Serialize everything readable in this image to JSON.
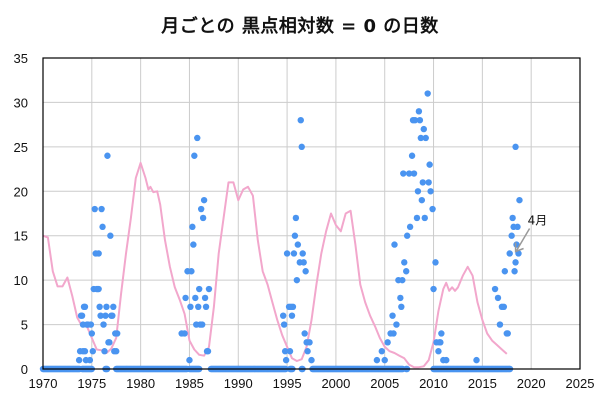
{
  "chart_data": {
    "type": "scatter",
    "title": "月ごとの 黒点相対数 = 0 の日数",
    "xlabel": "",
    "ylabel": "",
    "xlim": [
      1970,
      2025
    ],
    "ylim": [
      0,
      35
    ],
    "xticks": [
      1970,
      1975,
      1980,
      1985,
      1990,
      1995,
      2000,
      2005,
      2010,
      2015,
      2020,
      2025
    ],
    "yticks": [
      0,
      5,
      10,
      15,
      20,
      25,
      30,
      35
    ],
    "grid": true,
    "legend": "none",
    "colors": {
      "points": "#4a94f0",
      "smooth_line": "#f2a7cc",
      "grid": "#cccccc",
      "annotation_arrow": "#999999"
    },
    "annotation": {
      "text": "4月",
      "x": 2018.3,
      "y": 13
    },
    "series": [
      {
        "name": "spotless_days_per_month",
        "kind": "scatter",
        "zero_ranges": [
          [
            1970.0,
            1973.8
          ],
          [
            1974.0,
            1975.0
          ],
          [
            1976.4,
            1976.6
          ],
          [
            1977.5,
            1984.8
          ],
          [
            1985.0,
            1986.0
          ],
          [
            1987.2,
            1994.9
          ],
          [
            1995.3,
            1995.6
          ],
          [
            1996.5,
            1996.6
          ],
          [
            1997.6,
            2006.9
          ],
          [
            2007.2,
            2007.3
          ],
          [
            2010.0,
            2017.9
          ]
        ],
        "points": [
          [
            1973.7,
            1
          ],
          [
            1973.8,
            2
          ],
          [
            1973.9,
            6
          ],
          [
            1974.0,
            6
          ],
          [
            1974.1,
            2
          ],
          [
            1974.1,
            5
          ],
          [
            1974.2,
            7
          ],
          [
            1974.3,
            7
          ],
          [
            1974.3,
            2
          ],
          [
            1974.4,
            1
          ],
          [
            1974.5,
            5
          ],
          [
            1974.6,
            5
          ],
          [
            1974.8,
            1
          ],
          [
            1974.9,
            5
          ],
          [
            1975.0,
            4
          ],
          [
            1975.1,
            2
          ],
          [
            1975.2,
            9
          ],
          [
            1975.3,
            18
          ],
          [
            1975.4,
            13
          ],
          [
            1975.5,
            9
          ],
          [
            1975.6,
            9
          ],
          [
            1975.7,
            13
          ],
          [
            1975.7,
            9
          ],
          [
            1975.8,
            7
          ],
          [
            1975.9,
            6
          ],
          [
            1976.0,
            18
          ],
          [
            1976.1,
            16
          ],
          [
            1976.2,
            5
          ],
          [
            1976.3,
            2
          ],
          [
            1976.4,
            6
          ],
          [
            1976.5,
            7
          ],
          [
            1976.6,
            24
          ],
          [
            1976.7,
            3
          ],
          [
            1976.8,
            3
          ],
          [
            1976.9,
            15
          ],
          [
            1977.0,
            6
          ],
          [
            1977.1,
            6
          ],
          [
            1977.2,
            7
          ],
          [
            1977.3,
            2
          ],
          [
            1977.4,
            4
          ],
          [
            1977.5,
            2
          ],
          [
            1977.6,
            4
          ],
          [
            1984.2,
            4
          ],
          [
            1984.5,
            4
          ],
          [
            1984.6,
            8
          ],
          [
            1984.8,
            11
          ],
          [
            1985.0,
            1
          ],
          [
            1985.1,
            7
          ],
          [
            1985.2,
            11
          ],
          [
            1985.3,
            16
          ],
          [
            1985.4,
            14
          ],
          [
            1985.5,
            24
          ],
          [
            1985.6,
            8
          ],
          [
            1985.7,
            5
          ],
          [
            1985.8,
            26
          ],
          [
            1985.9,
            7
          ],
          [
            1986.0,
            9
          ],
          [
            1986.1,
            5
          ],
          [
            1986.2,
            18
          ],
          [
            1986.3,
            5
          ],
          [
            1986.4,
            17
          ],
          [
            1986.5,
            19
          ],
          [
            1986.6,
            8
          ],
          [
            1986.7,
            7
          ],
          [
            1986.8,
            2
          ],
          [
            1986.9,
            2
          ],
          [
            1987.0,
            9
          ],
          [
            1994.6,
            6
          ],
          [
            1994.7,
            5
          ],
          [
            1994.8,
            2
          ],
          [
            1994.9,
            1
          ],
          [
            1995.0,
            13
          ],
          [
            1995.2,
            7
          ],
          [
            1995.3,
            2
          ],
          [
            1995.4,
            7
          ],
          [
            1995.5,
            6
          ],
          [
            1995.6,
            7
          ],
          [
            1995.7,
            13
          ],
          [
            1995.8,
            15
          ],
          [
            1995.9,
            17
          ],
          [
            1996.0,
            10
          ],
          [
            1996.1,
            14
          ],
          [
            1996.3,
            12
          ],
          [
            1996.4,
            28
          ],
          [
            1996.5,
            25
          ],
          [
            1996.6,
            13
          ],
          [
            1996.7,
            12
          ],
          [
            1996.8,
            4
          ],
          [
            1996.9,
            11
          ],
          [
            1997.0,
            3
          ],
          [
            1997.1,
            2
          ],
          [
            1997.3,
            3
          ],
          [
            1997.5,
            1
          ],
          [
            2004.2,
            1
          ],
          [
            2004.7,
            2
          ],
          [
            2005.0,
            1
          ],
          [
            2005.3,
            3
          ],
          [
            2005.6,
            4
          ],
          [
            2005.8,
            6
          ],
          [
            2005.9,
            4
          ],
          [
            2006.0,
            14
          ],
          [
            2006.2,
            5
          ],
          [
            2006.4,
            10
          ],
          [
            2006.6,
            8
          ],
          [
            2006.7,
            7
          ],
          [
            2006.8,
            10
          ],
          [
            2006.9,
            22
          ],
          [
            2007.0,
            12
          ],
          [
            2007.2,
            11
          ],
          [
            2007.3,
            15
          ],
          [
            2007.5,
            22
          ],
          [
            2007.6,
            16
          ],
          [
            2007.8,
            24
          ],
          [
            2007.9,
            28
          ],
          [
            2008.0,
            22
          ],
          [
            2008.1,
            28
          ],
          [
            2008.3,
            17
          ],
          [
            2008.4,
            20
          ],
          [
            2008.5,
            29
          ],
          [
            2008.6,
            28
          ],
          [
            2008.7,
            26
          ],
          [
            2008.8,
            19
          ],
          [
            2008.9,
            21
          ],
          [
            2009.0,
            27
          ],
          [
            2009.1,
            17
          ],
          [
            2009.2,
            26
          ],
          [
            2009.4,
            31
          ],
          [
            2009.5,
            21
          ],
          [
            2009.6,
            23
          ],
          [
            2009.7,
            20
          ],
          [
            2009.9,
            18
          ],
          [
            2010.0,
            9
          ],
          [
            2010.2,
            12
          ],
          [
            2010.3,
            3
          ],
          [
            2010.5,
            2
          ],
          [
            2010.6,
            3
          ],
          [
            2010.7,
            3
          ],
          [
            2010.8,
            4
          ],
          [
            2011.0,
            1
          ],
          [
            2011.3,
            1
          ],
          [
            2014.4,
            1
          ],
          [
            2016.3,
            9
          ],
          [
            2016.6,
            8
          ],
          [
            2016.8,
            5
          ],
          [
            2017.0,
            7
          ],
          [
            2017.2,
            7
          ],
          [
            2017.3,
            11
          ],
          [
            2017.5,
            4
          ],
          [
            2017.6,
            4
          ],
          [
            2017.8,
            13
          ],
          [
            2018.0,
            15
          ],
          [
            2018.2,
            16
          ],
          [
            2018.3,
            11
          ],
          [
            2018.4,
            12
          ],
          [
            2018.6,
            16
          ],
          [
            2018.8,
            19
          ],
          [
            2018.1,
            17
          ],
          [
            2018.4,
            25
          ],
          [
            2018.5,
            14
          ],
          [
            2018.7,
            13
          ]
        ]
      },
      {
        "name": "smoothed",
        "kind": "line",
        "points": [
          [
            1970.0,
            15
          ],
          [
            1970.5,
            14.8
          ],
          [
            1971.0,
            11
          ],
          [
            1971.5,
            9.3
          ],
          [
            1972.0,
            9.3
          ],
          [
            1972.5,
            10.3
          ],
          [
            1973.0,
            8.2
          ],
          [
            1973.5,
            5.8
          ],
          [
            1974.0,
            4.8
          ],
          [
            1974.5,
            4.8
          ],
          [
            1975.0,
            3.5
          ],
          [
            1975.5,
            2.2
          ],
          [
            1976.0,
            2.1
          ],
          [
            1976.5,
            1.8
          ],
          [
            1977.0,
            2.3
          ],
          [
            1977.5,
            3.5
          ],
          [
            1978.0,
            8.5
          ],
          [
            1978.5,
            13
          ],
          [
            1979.0,
            17
          ],
          [
            1979.5,
            21.5
          ],
          [
            1980.0,
            23.2
          ],
          [
            1980.5,
            21.5
          ],
          [
            1980.8,
            20.2
          ],
          [
            1981.0,
            20.5
          ],
          [
            1981.3,
            19.9
          ],
          [
            1981.7,
            20
          ],
          [
            1982.0,
            18.5
          ],
          [
            1982.5,
            14.5
          ],
          [
            1983.0,
            11.5
          ],
          [
            1983.5,
            9.2
          ],
          [
            1984.0,
            7.8
          ],
          [
            1984.5,
            6.2
          ],
          [
            1985.0,
            3.2
          ],
          [
            1985.5,
            2.2
          ],
          [
            1986.0,
            1.6
          ],
          [
            1986.5,
            1.5
          ],
          [
            1987.0,
            2.5
          ],
          [
            1987.5,
            7
          ],
          [
            1988.0,
            13
          ],
          [
            1988.5,
            17
          ],
          [
            1989.0,
            21
          ],
          [
            1989.5,
            21
          ],
          [
            1990.0,
            19
          ],
          [
            1990.5,
            20.2
          ],
          [
            1991.0,
            20.5
          ],
          [
            1991.5,
            19.5
          ],
          [
            1992.0,
            14.5
          ],
          [
            1992.5,
            11
          ],
          [
            1993.0,
            9.5
          ],
          [
            1993.5,
            7.5
          ],
          [
            1994.0,
            5.5
          ],
          [
            1994.5,
            3.8
          ],
          [
            1995.0,
            2.5
          ],
          [
            1995.5,
            1.2
          ],
          [
            1996.0,
            0.9
          ],
          [
            1996.5,
            1.1
          ],
          [
            1997.0,
            2.5
          ],
          [
            1997.5,
            5.5
          ],
          [
            1998.0,
            9.5
          ],
          [
            1998.5,
            13
          ],
          [
            1999.0,
            15.5
          ],
          [
            1999.5,
            17.5
          ],
          [
            2000.0,
            16.2
          ],
          [
            2000.5,
            15.5
          ],
          [
            2001.0,
            17.5
          ],
          [
            2001.5,
            17.8
          ],
          [
            2002.0,
            14
          ],
          [
            2002.5,
            9.5
          ],
          [
            2003.0,
            7.5
          ],
          [
            2003.5,
            6
          ],
          [
            2004.0,
            4.8
          ],
          [
            2004.5,
            3.5
          ],
          [
            2005.0,
            2.5
          ],
          [
            2005.5,
            2
          ],
          [
            2006.0,
            1.8
          ],
          [
            2006.5,
            1.5
          ],
          [
            2007.0,
            1.2
          ],
          [
            2007.5,
            0.5
          ],
          [
            2008.0,
            0.2
          ],
          [
            2008.5,
            0.2
          ],
          [
            2009.0,
            0.3
          ],
          [
            2009.5,
            1
          ],
          [
            2010.0,
            3
          ],
          [
            2010.5,
            6.5
          ],
          [
            2011.0,
            9
          ],
          [
            2011.3,
            9.7
          ],
          [
            2011.6,
            8.8
          ],
          [
            2011.9,
            9.2
          ],
          [
            2012.2,
            8.8
          ],
          [
            2012.5,
            9.2
          ],
          [
            2013.0,
            10.5
          ],
          [
            2013.5,
            11.5
          ],
          [
            2014.0,
            10.5
          ],
          [
            2014.5,
            7.5
          ],
          [
            2015.0,
            5.5
          ],
          [
            2015.5,
            4
          ],
          [
            2016.0,
            3.2
          ],
          [
            2016.5,
            2.7
          ],
          [
            2017.0,
            2.2
          ],
          [
            2017.5,
            1.7
          ]
        ]
      }
    ]
  }
}
